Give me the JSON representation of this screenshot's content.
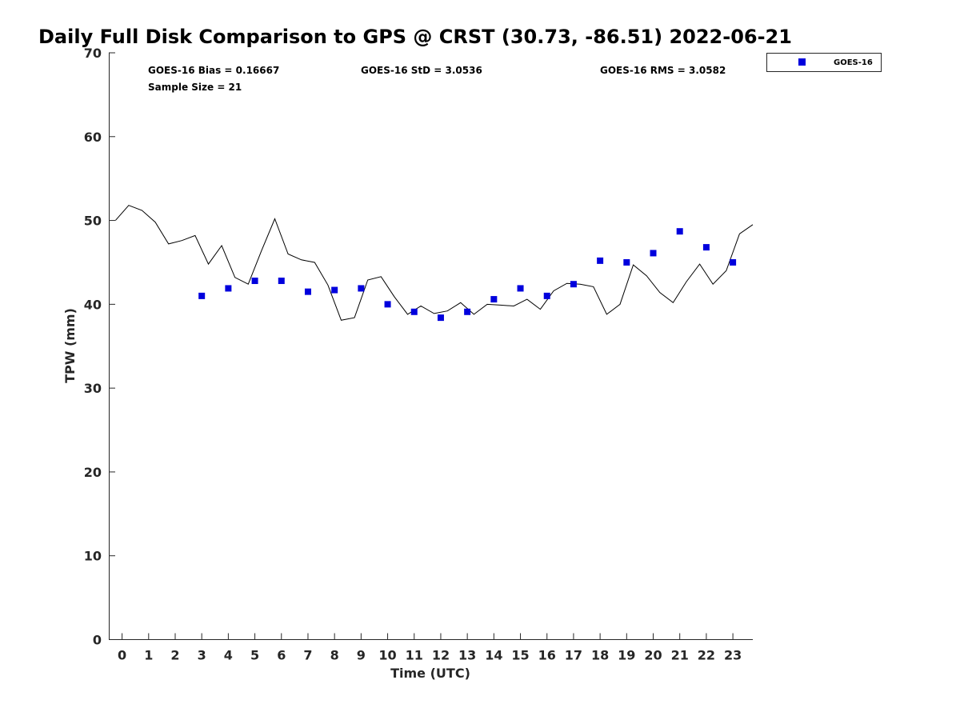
{
  "chart_data": {
    "type": "line",
    "title": "Daily Full Disk Comparison to GPS @ CRST (30.73, -86.51) 2022-06-21",
    "xlabel": "Time (UTC)",
    "ylabel": "TPW (mm)",
    "xlim": [
      -0.5,
      23.75
    ],
    "ylim": [
      0,
      70
    ],
    "xticks": [
      0,
      1,
      2,
      3,
      4,
      5,
      6,
      7,
      8,
      9,
      10,
      11,
      12,
      13,
      14,
      15,
      16,
      17,
      18,
      19,
      20,
      21,
      22,
      23
    ],
    "yticks": [
      0,
      10,
      20,
      30,
      40,
      50,
      60,
      70
    ],
    "grid": false,
    "legend_position": "top-right (outside plot)",
    "stats": {
      "bias": "GOES-16 Bias = 0.16667",
      "std": "GOES-16 StD = 3.0536",
      "rms": "GOES-16 RMS = 3.0582",
      "sample": "Sample Size = 21"
    },
    "series": [
      {
        "kind": "line",
        "color": "#000000",
        "x": [
          -0.25,
          0.25,
          0.75,
          1.25,
          1.75,
          2.25,
          2.75,
          3.25,
          3.75,
          4.25,
          4.75,
          5.25,
          5.75,
          6.25,
          6.75,
          7.25,
          7.75,
          8.25,
          8.75,
          9.25,
          9.75,
          10.25,
          10.75,
          11.25,
          11.75,
          12.25,
          12.75,
          13.25,
          13.75,
          14.25,
          14.75,
          15.25,
          15.75,
          16.25,
          16.75,
          17.25,
          17.75,
          18.25,
          18.75,
          19.25,
          19.75,
          20.25,
          20.75,
          21.25,
          21.75,
          22.25,
          22.75,
          23.25,
          23.75
        ],
        "values": [
          50.0,
          51.8,
          51.2,
          49.8,
          47.2,
          47.6,
          48.2,
          44.8,
          47.0,
          43.2,
          42.4,
          46.4,
          50.2,
          46.0,
          45.3,
          45.0,
          42.3,
          38.1,
          38.4,
          42.9,
          43.3,
          40.9,
          38.8,
          39.8,
          38.9,
          39.2,
          40.2,
          38.8,
          40.0,
          39.9,
          39.8,
          40.6,
          39.4,
          41.6,
          42.5,
          42.4,
          42.1,
          38.8,
          40.0,
          44.7,
          43.4,
          41.4,
          40.2,
          42.7,
          44.8,
          42.4,
          44.0,
          48.4,
          49.5
        ]
      },
      {
        "kind": "scatter",
        "name": "GOES-16",
        "color": "#0000dd",
        "x": [
          3,
          4,
          5,
          6,
          7,
          8,
          9,
          10,
          11,
          12,
          13,
          14,
          15,
          16,
          17,
          18,
          19,
          20,
          21,
          22,
          23
        ],
        "values": [
          41.0,
          41.9,
          42.8,
          42.8,
          41.5,
          41.7,
          41.9,
          40.0,
          39.1,
          38.4,
          39.1,
          40.6,
          41.9,
          41.0,
          42.4,
          45.2,
          45.0,
          46.1,
          48.7,
          46.8,
          45.0
        ]
      }
    ]
  }
}
